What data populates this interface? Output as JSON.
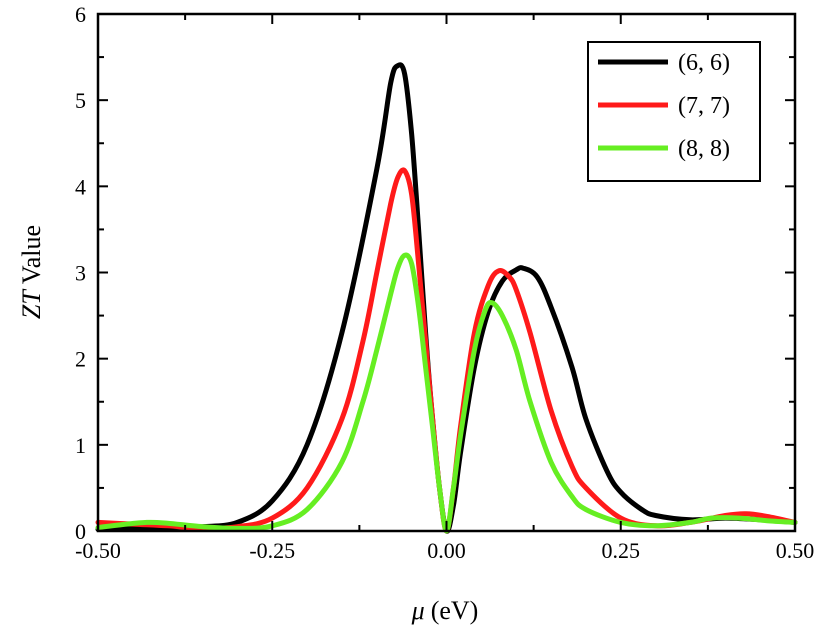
{
  "chart_data": {
    "type": "line",
    "xlabel_symbol": "μ",
    "xlabel_unit": "(eV)",
    "ylabel_italic": "ZT",
    "ylabel_rest": " Value",
    "xlim": [
      -0.5,
      0.5
    ],
    "ylim": [
      0,
      6
    ],
    "xticks": [
      -0.5,
      -0.25,
      0.0,
      0.25,
      0.5
    ],
    "xtick_labels": [
      "-0.50",
      "-0.25",
      "0.00",
      "0.25",
      "0.50"
    ],
    "yticks": [
      0,
      1,
      2,
      3,
      4,
      5,
      6
    ],
    "ytick_labels": [
      "0",
      "1",
      "2",
      "3",
      "4",
      "5",
      "6"
    ],
    "grid": false,
    "legend_position": "top-right",
    "series": [
      {
        "name": "(6, 6)",
        "color": "#000000",
        "points": [
          [
            -0.5,
            0.02
          ],
          [
            -0.45,
            0.03
          ],
          [
            -0.4,
            0.04
          ],
          [
            -0.35,
            0.05
          ],
          [
            -0.3,
            0.1
          ],
          [
            -0.25,
            0.35
          ],
          [
            -0.2,
            1.0
          ],
          [
            -0.15,
            2.3
          ],
          [
            -0.1,
            4.2
          ],
          [
            -0.08,
            5.2
          ],
          [
            -0.07,
            5.4
          ],
          [
            -0.06,
            5.3
          ],
          [
            -0.05,
            4.6
          ],
          [
            -0.04,
            3.5
          ],
          [
            -0.03,
            2.3
          ],
          [
            -0.02,
            1.3
          ],
          [
            -0.01,
            0.5
          ],
          [
            0.0,
            0.0
          ],
          [
            0.01,
            0.3
          ],
          [
            0.02,
            0.9
          ],
          [
            0.04,
            1.9
          ],
          [
            0.06,
            2.55
          ],
          [
            0.08,
            2.9
          ],
          [
            0.1,
            3.03
          ],
          [
            0.11,
            3.05
          ],
          [
            0.13,
            2.95
          ],
          [
            0.15,
            2.6
          ],
          [
            0.18,
            1.9
          ],
          [
            0.2,
            1.3
          ],
          [
            0.23,
            0.7
          ],
          [
            0.25,
            0.45
          ],
          [
            0.28,
            0.25
          ],
          [
            0.3,
            0.18
          ],
          [
            0.35,
            0.13
          ],
          [
            0.4,
            0.15
          ],
          [
            0.45,
            0.13
          ],
          [
            0.5,
            0.1
          ]
        ]
      },
      {
        "name": "(7, 7)",
        "color": "#ff1a1a",
        "points": [
          [
            -0.5,
            0.1
          ],
          [
            -0.45,
            0.08
          ],
          [
            -0.4,
            0.06
          ],
          [
            -0.35,
            0.03
          ],
          [
            -0.3,
            0.05
          ],
          [
            -0.25,
            0.15
          ],
          [
            -0.2,
            0.5
          ],
          [
            -0.15,
            1.3
          ],
          [
            -0.12,
            2.2
          ],
          [
            -0.1,
            3.0
          ],
          [
            -0.08,
            3.8
          ],
          [
            -0.07,
            4.1
          ],
          [
            -0.06,
            4.18
          ],
          [
            -0.05,
            3.9
          ],
          [
            -0.04,
            3.1
          ],
          [
            -0.03,
            2.2
          ],
          [
            -0.02,
            1.3
          ],
          [
            -0.01,
            0.5
          ],
          [
            0.0,
            0.0
          ],
          [
            0.01,
            0.5
          ],
          [
            0.02,
            1.2
          ],
          [
            0.04,
            2.3
          ],
          [
            0.06,
            2.85
          ],
          [
            0.075,
            3.02
          ],
          [
            0.09,
            2.95
          ],
          [
            0.1,
            2.8
          ],
          [
            0.12,
            2.3
          ],
          [
            0.15,
            1.4
          ],
          [
            0.18,
            0.75
          ],
          [
            0.2,
            0.5
          ],
          [
            0.25,
            0.15
          ],
          [
            0.3,
            0.06
          ],
          [
            0.35,
            0.1
          ],
          [
            0.4,
            0.18
          ],
          [
            0.43,
            0.2
          ],
          [
            0.46,
            0.17
          ],
          [
            0.5,
            0.1
          ]
        ]
      },
      {
        "name": "(8, 8)",
        "color": "#66ee22",
        "points": [
          [
            -0.5,
            0.04
          ],
          [
            -0.47,
            0.07
          ],
          [
            -0.43,
            0.1
          ],
          [
            -0.4,
            0.09
          ],
          [
            -0.35,
            0.05
          ],
          [
            -0.3,
            0.03
          ],
          [
            -0.25,
            0.06
          ],
          [
            -0.2,
            0.25
          ],
          [
            -0.15,
            0.8
          ],
          [
            -0.12,
            1.5
          ],
          [
            -0.1,
            2.1
          ],
          [
            -0.08,
            2.75
          ],
          [
            -0.07,
            3.05
          ],
          [
            -0.06,
            3.2
          ],
          [
            -0.05,
            3.1
          ],
          [
            -0.04,
            2.6
          ],
          [
            -0.03,
            1.9
          ],
          [
            -0.02,
            1.2
          ],
          [
            -0.01,
            0.5
          ],
          [
            0.0,
            0.0
          ],
          [
            0.01,
            0.5
          ],
          [
            0.02,
            1.1
          ],
          [
            0.04,
            2.1
          ],
          [
            0.055,
            2.55
          ],
          [
            0.065,
            2.65
          ],
          [
            0.08,
            2.5
          ],
          [
            0.1,
            2.1
          ],
          [
            0.12,
            1.5
          ],
          [
            0.15,
            0.8
          ],
          [
            0.18,
            0.4
          ],
          [
            0.2,
            0.25
          ],
          [
            0.25,
            0.1
          ],
          [
            0.3,
            0.06
          ],
          [
            0.35,
            0.1
          ],
          [
            0.38,
            0.15
          ],
          [
            0.42,
            0.15
          ],
          [
            0.46,
            0.12
          ],
          [
            0.5,
            0.1
          ]
        ]
      }
    ]
  }
}
